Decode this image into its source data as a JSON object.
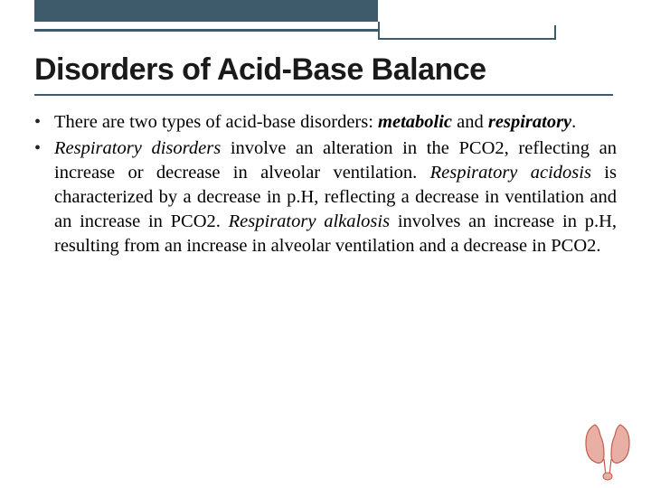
{
  "decoration": {
    "bar_color": "#3d5b6b",
    "underline_color": "#3d5b6b"
  },
  "title": "Disorders of Acid-Base Balance",
  "bullets": [
    {
      "parts": [
        {
          "t": "There are two types of acid-base disorders: ",
          "cls": ""
        },
        {
          "t": "metabolic",
          "cls": "bi"
        },
        {
          "t": " and ",
          "cls": ""
        },
        {
          "t": "respiratory",
          "cls": "bi"
        },
        {
          "t": ".",
          "cls": ""
        }
      ]
    },
    {
      "parts": [
        {
          "t": "Respiratory disorders",
          "cls": "it"
        },
        {
          "t": " involve an alteration in the PCO2, reflecting an increase or decrease in alveolar ventilation. ",
          "cls": ""
        },
        {
          "t": "Respiratory acidosis",
          "cls": "it"
        },
        {
          "t": " is characterized by a decrease in p.H, reflecting a decrease in ventilation and an increase in PCO2. ",
          "cls": ""
        },
        {
          "t": "Respiratory alkalosis",
          "cls": "it"
        },
        {
          "t": " involves an increase in p.H, resulting from an increase in alveolar ventilation and a decrease in PCO2.",
          "cls": ""
        }
      ]
    }
  ],
  "corner_icon": {
    "stroke": "#c25b4a",
    "fill": "#e8b0a5"
  }
}
